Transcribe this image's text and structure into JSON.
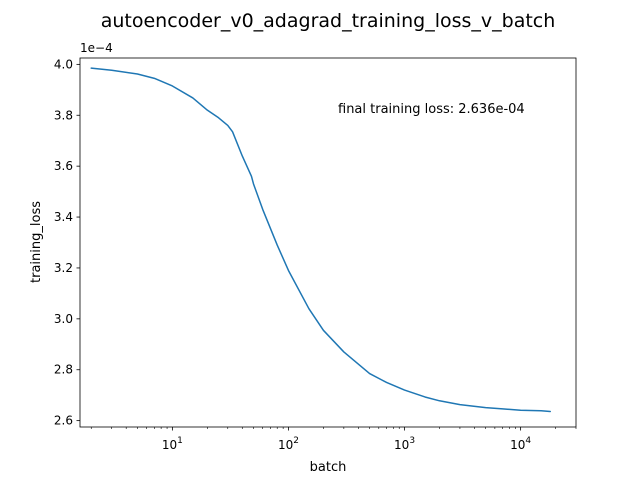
{
  "chart_data": {
    "type": "line",
    "title": "autoencoder_v0_adagrad_training_loss_v_batch",
    "xlabel": "batch",
    "ylabel": "training_loss",
    "x_scale": "log",
    "xlim": [
      1.6,
      30000
    ],
    "ylim": [
      2.575,
      4.025
    ],
    "y_offset_label": "1e−4",
    "y_ticks": [
      {
        "value": 2.6,
        "label": "2.6"
      },
      {
        "value": 2.8,
        "label": "2.8"
      },
      {
        "value": 3.0,
        "label": "3.0"
      },
      {
        "value": 3.2,
        "label": "3.2"
      },
      {
        "value": 3.4,
        "label": "3.4"
      },
      {
        "value": 3.6,
        "label": "3.6"
      },
      {
        "value": 3.8,
        "label": "3.8"
      },
      {
        "value": 4.0,
        "label": "4.0"
      }
    ],
    "x_ticks": [
      {
        "value": 10,
        "base": "10",
        "exp": "1"
      },
      {
        "value": 100,
        "base": "10",
        "exp": "2"
      },
      {
        "value": 1000,
        "base": "10",
        "exp": "3"
      },
      {
        "value": 10000,
        "base": "10",
        "exp": "4"
      }
    ],
    "annotation": "final training loss: 2.636e-04",
    "grid": false,
    "legend": "none",
    "series": [
      {
        "color": "#1f77b4",
        "x": [
          2,
          3,
          5,
          7,
          10,
          15,
          20,
          25,
          30,
          33,
          40,
          48,
          50,
          60,
          80,
          100,
          150,
          200,
          300,
          500,
          700,
          1000,
          1500,
          2000,
          3000,
          5000,
          7000,
          10000,
          15000,
          18000
        ],
        "y": [
          3.985,
          3.977,
          3.962,
          3.945,
          3.915,
          3.868,
          3.82,
          3.79,
          3.76,
          3.735,
          3.64,
          3.56,
          3.53,
          3.43,
          3.29,
          3.19,
          3.04,
          2.955,
          2.87,
          2.785,
          2.75,
          2.72,
          2.693,
          2.678,
          2.663,
          2.651,
          2.646,
          2.641,
          2.639,
          2.636
        ]
      }
    ]
  }
}
